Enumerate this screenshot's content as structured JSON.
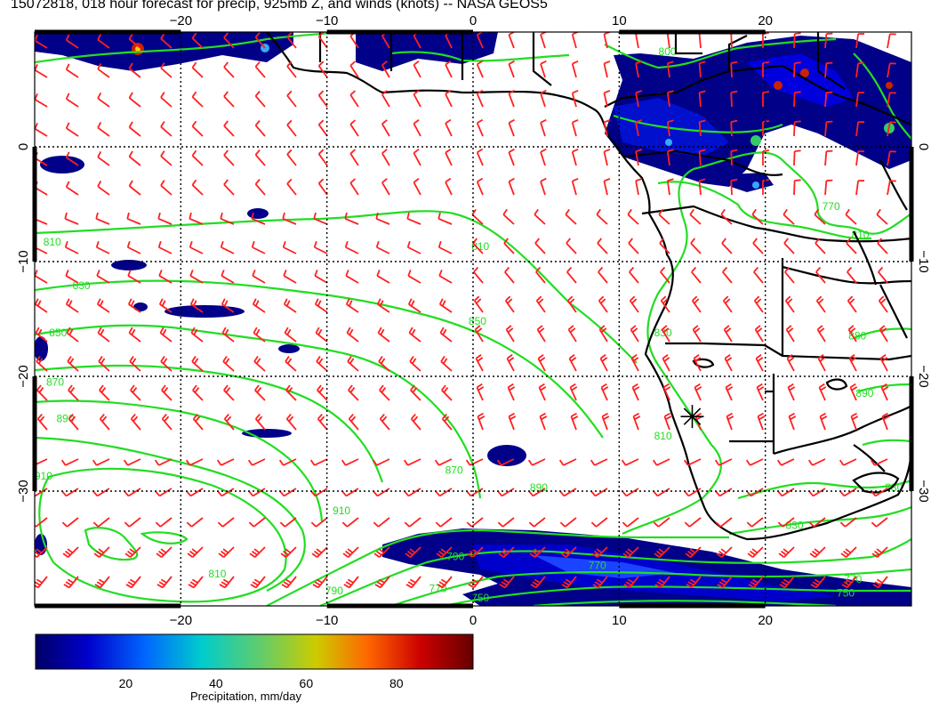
{
  "title": "15072818, 018 hour forecast for precip, 925mb Z, and winds (knots) -- NASA GEOS5",
  "map": {
    "lon_range": [
      -30,
      30
    ],
    "lat_range": [
      -40,
      10
    ],
    "lon_ticks": [
      {
        "value": -20,
        "label": "−20"
      },
      {
        "value": -10,
        "label": "−10"
      },
      {
        "value": 0,
        "label": "0"
      },
      {
        "value": 10,
        "label": "10"
      },
      {
        "value": 20,
        "label": "20"
      }
    ],
    "lat_ticks": [
      {
        "value": 0,
        "label": "0"
      },
      {
        "value": -10,
        "label": "−10"
      },
      {
        "value": -20,
        "label": "−20"
      },
      {
        "value": -30,
        "label": "−30"
      }
    ],
    "contour_color": "#22dd22",
    "barb_color": "#ff2020",
    "coast_color": "#000000",
    "contour_labels": [
      {
        "text": "810",
        "lon": -28.8,
        "lat": -8.6
      },
      {
        "text": "830",
        "lon": -26.8,
        "lat": -12.4
      },
      {
        "text": "850",
        "lon": -28.4,
        "lat": -16.5
      },
      {
        "text": "870",
        "lon": -28.6,
        "lat": -20.8
      },
      {
        "text": "890",
        "lon": -27.9,
        "lat": -24.0
      },
      {
        "text": "910",
        "lon": -29.4,
        "lat": -29.0
      },
      {
        "text": "810",
        "lon": 0.5,
        "lat": -9.0
      },
      {
        "text": "850",
        "lon": 0.3,
        "lat": -15.5
      },
      {
        "text": "870",
        "lon": -1.3,
        "lat": -28.5
      },
      {
        "text": "890",
        "lon": 4.5,
        "lat": -30.0
      },
      {
        "text": "910",
        "lon": -9.0,
        "lat": -32.0
      },
      {
        "text": "810",
        "lon": -17.5,
        "lat": -37.5
      },
      {
        "text": "790",
        "lon": -1.2,
        "lat": -36.0
      },
      {
        "text": "770",
        "lon": 8.5,
        "lat": -36.8
      },
      {
        "text": "790",
        "lon": -9.5,
        "lat": -39.0
      },
      {
        "text": "770",
        "lon": -2.4,
        "lat": -38.8
      },
      {
        "text": "750",
        "lon": 0.5,
        "lat": -39.6
      },
      {
        "text": "770",
        "lon": 26.0,
        "lat": -38.0
      },
      {
        "text": "750",
        "lon": 25.5,
        "lat": -39.2
      },
      {
        "text": "830",
        "lon": 22.0,
        "lat": -33.3
      },
      {
        "text": "810",
        "lon": 13.0,
        "lat": -25.5
      },
      {
        "text": "830",
        "lon": 13.0,
        "lat": -16.5
      },
      {
        "text": "770",
        "lon": 24.5,
        "lat": -5.5
      },
      {
        "text": "810",
        "lon": 26.5,
        "lat": -8.0
      },
      {
        "text": "880",
        "lon": 26.3,
        "lat": -16.8
      },
      {
        "text": "890",
        "lon": 26.8,
        "lat": -21.8
      },
      {
        "text": "880",
        "lon": 28.8,
        "lat": -30.0
      },
      {
        "text": "800",
        "lon": 13.3,
        "lat": 8.0
      }
    ],
    "marker_label": "star marker",
    "marker": {
      "lon": 15.0,
      "lat": -23.5
    }
  },
  "colorbar": {
    "ticks": [
      20,
      40,
      60,
      80
    ],
    "range": [
      0,
      97
    ],
    "label": "Precipitation, mm/day",
    "stops": [
      "#000066",
      "#0000cc",
      "#0066ff",
      "#00cccc",
      "#66cc66",
      "#cccc00",
      "#ff6600",
      "#cc0000",
      "#660000"
    ]
  }
}
